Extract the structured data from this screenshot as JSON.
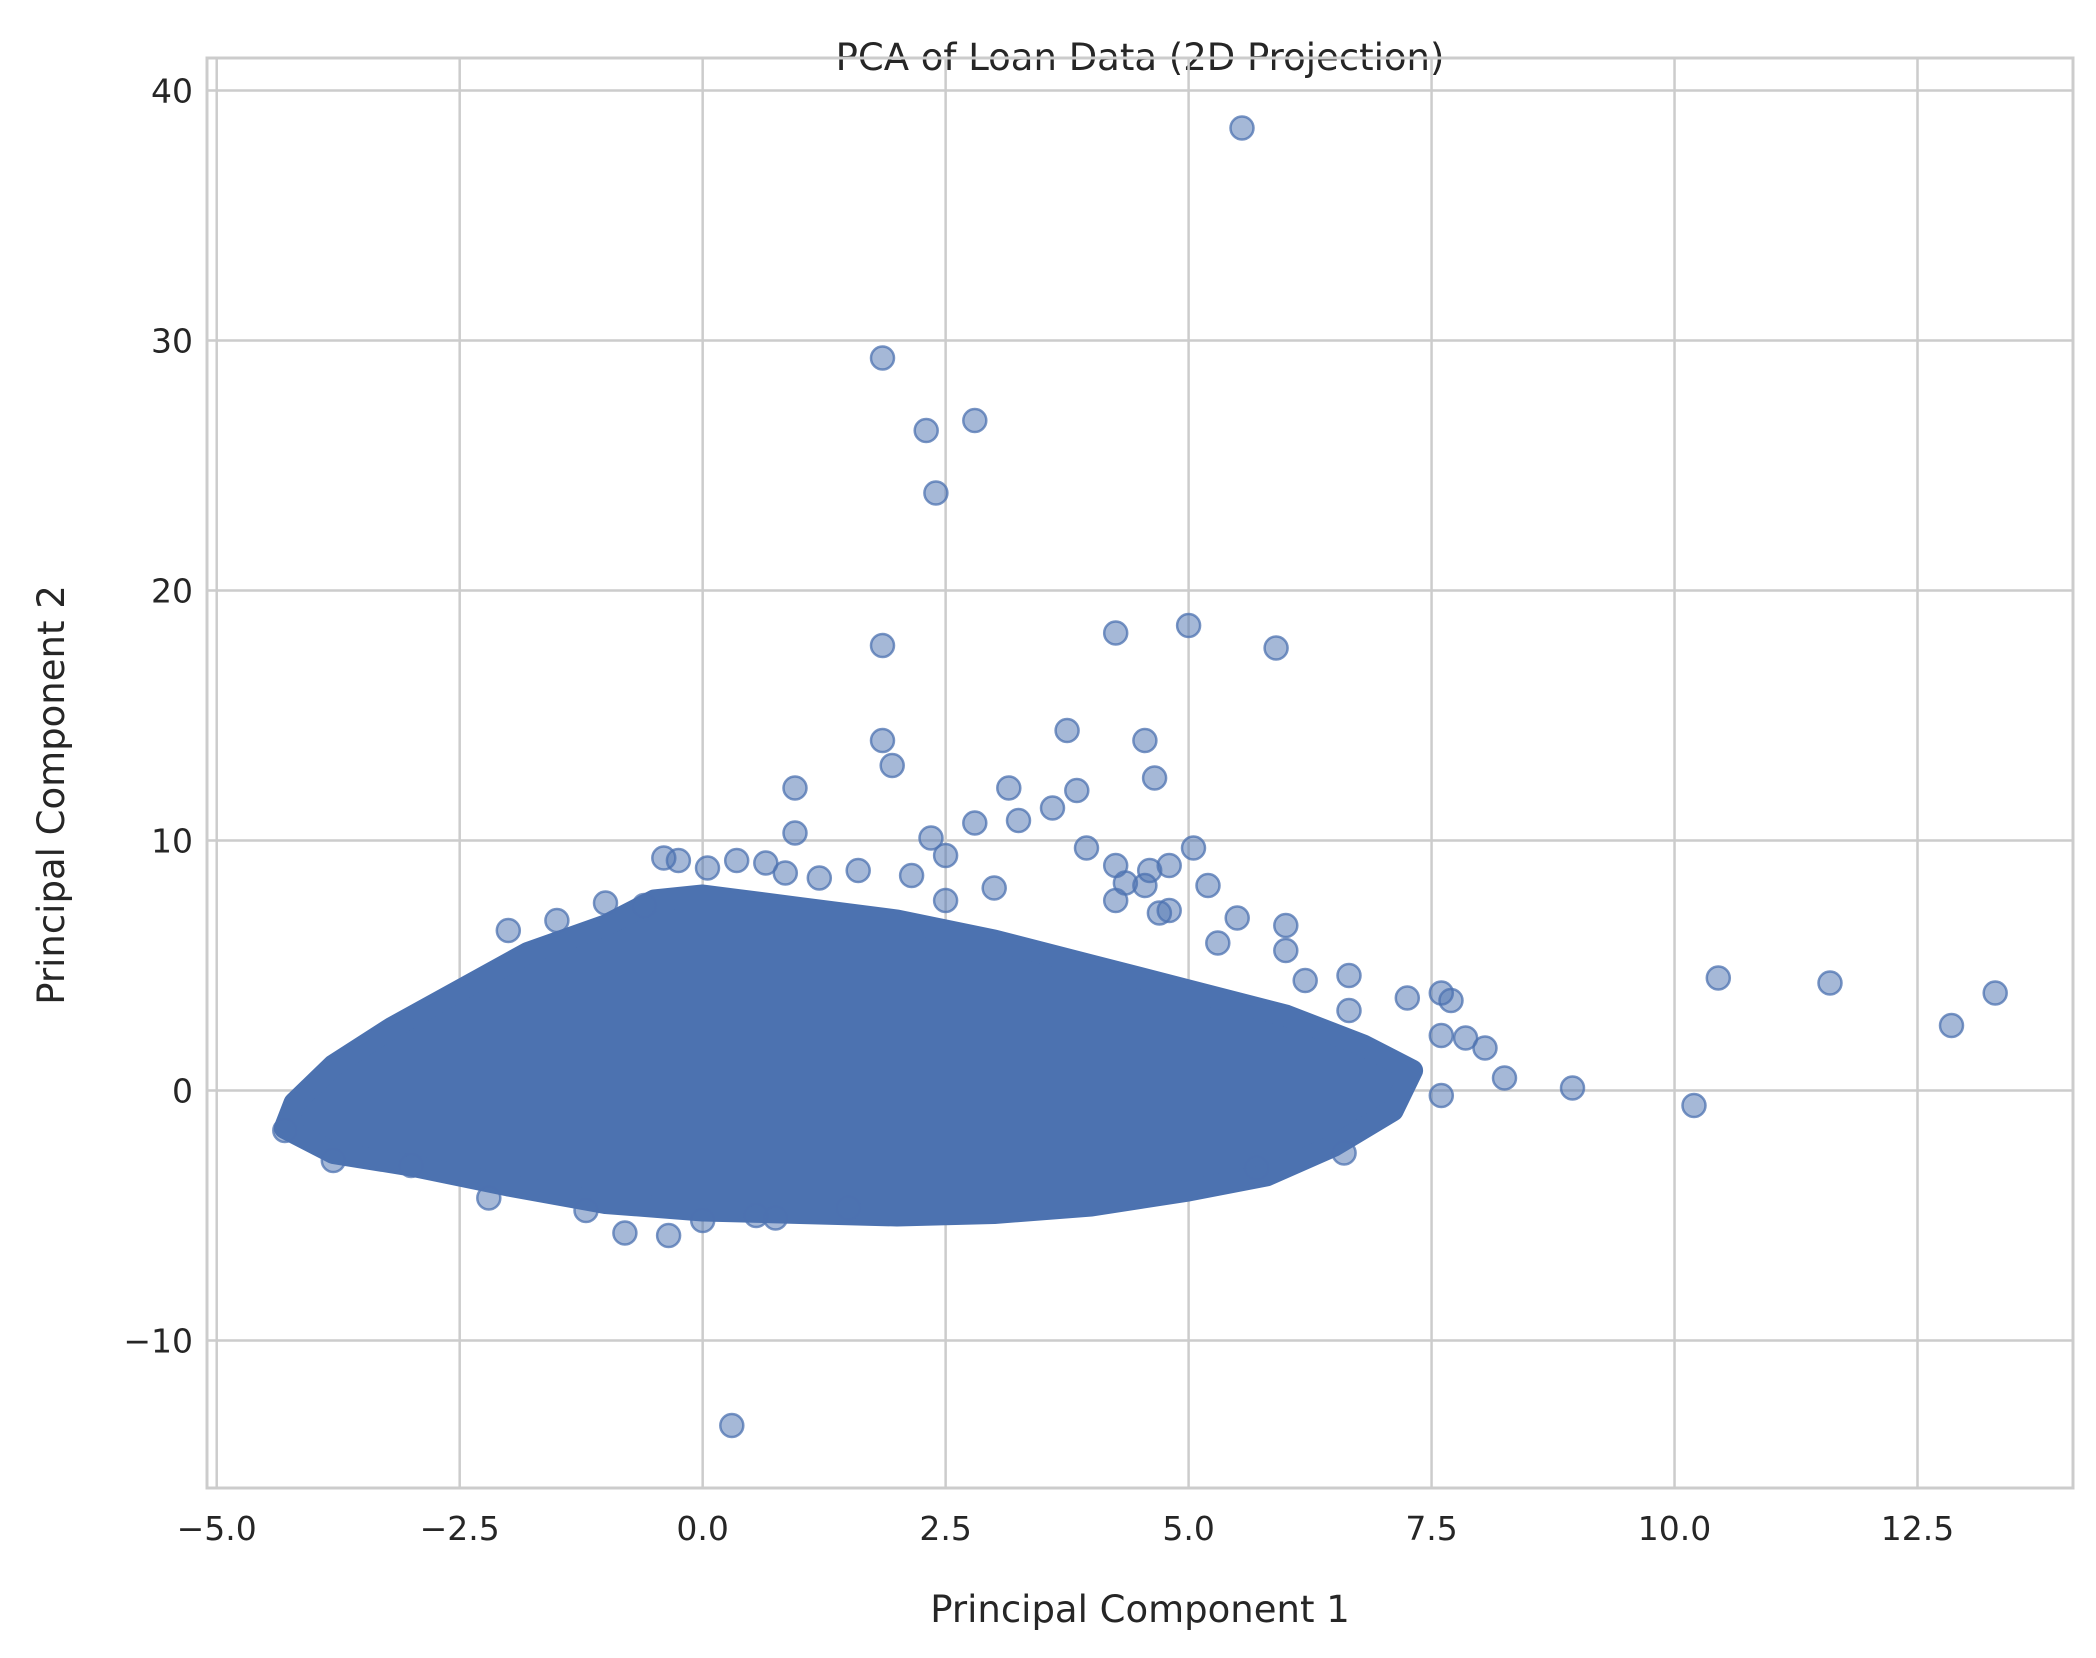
{
  "chart_data": {
    "type": "scatter",
    "title": "PCA of Loan Data (2D Projection)",
    "xlabel": "Principal Component 1",
    "ylabel": "Principal Component 2",
    "xlim": [
      -5.1,
      14.1
    ],
    "ylim": [
      -15.9,
      41.3
    ],
    "xticks": [
      -5.0,
      -2.5,
      0.0,
      2.5,
      5.0,
      7.5,
      10.0,
      12.5
    ],
    "xtick_labels": [
      "−5.0",
      "−2.5",
      "0.0",
      "2.5",
      "5.0",
      "7.5",
      "10.0",
      "12.5"
    ],
    "yticks": [
      -10,
      0,
      10,
      20,
      30,
      40
    ],
    "ytick_labels": [
      "−10",
      "0",
      "10",
      "20",
      "30",
      "40"
    ],
    "grid": true,
    "marker_color": "#4c72b0",
    "marker_alpha": 0.5,
    "dense_cluster": {
      "description_points": "main mass of overlapping points",
      "boundary": [
        [
          -4.3,
          -1.5
        ],
        [
          -3.8,
          -2.5
        ],
        [
          -3.0,
          -3.0
        ],
        [
          -2.0,
          -3.8
        ],
        [
          -1.0,
          -4.5
        ],
        [
          0.0,
          -4.8
        ],
        [
          1.0,
          -4.9
        ],
        [
          2.0,
          -5.0
        ],
        [
          3.0,
          -4.9
        ],
        [
          4.0,
          -4.6
        ],
        [
          5.0,
          -4.0
        ],
        [
          5.8,
          -3.4
        ],
        [
          6.5,
          -2.2
        ],
        [
          7.1,
          -0.8
        ],
        [
          7.3,
          0.8
        ],
        [
          6.8,
          1.8
        ],
        [
          6.0,
          3.0
        ],
        [
          5.0,
          4.0
        ],
        [
          4.0,
          5.0
        ],
        [
          3.0,
          6.0
        ],
        [
          2.0,
          6.8
        ],
        [
          1.0,
          7.3
        ],
        [
          0.0,
          7.8
        ],
        [
          -0.5,
          7.6
        ],
        [
          -1.0,
          6.6
        ],
        [
          -1.8,
          5.5
        ],
        [
          -2.5,
          4.0
        ],
        [
          -3.2,
          2.5
        ],
        [
          -3.8,
          1.0
        ],
        [
          -4.2,
          -0.5
        ]
      ]
    },
    "points": [
      [
        5.55,
        38.5
      ],
      [
        1.85,
        29.3
      ],
      [
        2.8,
        26.8
      ],
      [
        2.3,
        26.4
      ],
      [
        2.4,
        23.9
      ],
      [
        1.85,
        17.8
      ],
      [
        4.25,
        18.3
      ],
      [
        5.0,
        18.6
      ],
      [
        5.9,
        17.7
      ],
      [
        3.75,
        14.4
      ],
      [
        4.55,
        14.0
      ],
      [
        1.85,
        14.0
      ],
      [
        1.95,
        13.0
      ],
      [
        4.65,
        12.5
      ],
      [
        0.95,
        12.1
      ],
      [
        3.15,
        12.1
      ],
      [
        3.85,
        12.0
      ],
      [
        3.6,
        11.3
      ],
      [
        3.25,
        10.8
      ],
      [
        2.8,
        10.7
      ],
      [
        0.95,
        10.3
      ],
      [
        2.35,
        10.1
      ],
      [
        3.95,
        9.7
      ],
      [
        5.05,
        9.7
      ],
      [
        2.5,
        9.4
      ],
      [
        4.25,
        9.0
      ],
      [
        4.6,
        8.8
      ],
      [
        4.8,
        9.0
      ],
      [
        5.2,
        8.2
      ],
      [
        4.35,
        8.3
      ],
      [
        4.55,
        8.2
      ],
      [
        4.7,
        7.1
      ],
      [
        4.8,
        7.2
      ],
      [
        4.25,
        7.6
      ],
      [
        5.5,
        6.9
      ],
      [
        6.0,
        6.6
      ],
      [
        6.0,
        5.6
      ],
      [
        5.3,
        5.9
      ],
      [
        6.65,
        4.6
      ],
      [
        6.2,
        4.4
      ],
      [
        7.25,
        3.7
      ],
      [
        7.6,
        3.9
      ],
      [
        7.7,
        3.6
      ],
      [
        6.65,
        3.2
      ],
      [
        7.6,
        2.2
      ],
      [
        7.85,
        2.1
      ],
      [
        8.05,
        1.7
      ],
      [
        8.25,
        0.5
      ],
      [
        8.95,
        0.1
      ],
      [
        7.6,
        -0.2
      ],
      [
        10.45,
        4.5
      ],
      [
        11.6,
        4.3
      ],
      [
        13.3,
        3.9
      ],
      [
        12.85,
        2.6
      ],
      [
        10.2,
        -0.6
      ],
      [
        6.6,
        -2.5
      ],
      [
        5.7,
        -3.1
      ],
      [
        -0.8,
        -5.7
      ],
      [
        -0.35,
        -5.8
      ],
      [
        0.0,
        -5.2
      ],
      [
        0.55,
        -5.0
      ],
      [
        0.75,
        -5.1
      ],
      [
        1.5,
        -4.7
      ],
      [
        0.3,
        -13.4
      ],
      [
        -4.3,
        -1.6
      ],
      [
        -3.8,
        -2.8
      ],
      [
        -3.0,
        -3.0
      ],
      [
        -2.2,
        -4.3
      ],
      [
        -1.2,
        -4.8
      ],
      [
        -2.0,
        6.4
      ],
      [
        -1.5,
        6.8
      ],
      [
        -1.0,
        7.5
      ],
      [
        -0.6,
        7.4
      ],
      [
        -0.4,
        9.3
      ],
      [
        -0.25,
        9.2
      ],
      [
        0.05,
        8.9
      ],
      [
        0.35,
        9.2
      ],
      [
        0.65,
        9.1
      ],
      [
        0.85,
        8.7
      ],
      [
        1.6,
        8.8
      ],
      [
        2.15,
        8.6
      ],
      [
        2.5,
        7.6
      ],
      [
        3.0,
        8.1
      ],
      [
        1.2,
        8.5
      ]
    ]
  }
}
